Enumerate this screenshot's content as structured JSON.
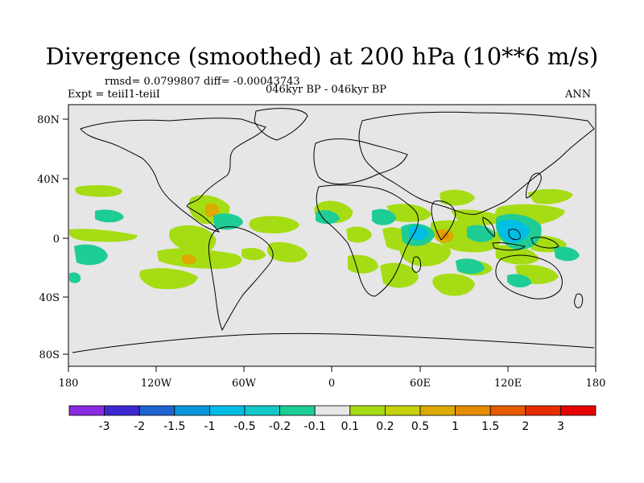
{
  "title": "Divergence (smoothed) at 200 hPa (10**6 m/s)",
  "stats": "rmsd= 0.0799807 diff= -0.00043743",
  "experiment": "Expt = teiiI1-teiiI",
  "period": "046kyr BP - 046kyr BP",
  "season": "ANN",
  "axes": {
    "lat_labels": [
      "80N",
      "40N",
      "0",
      "40S",
      "80S"
    ],
    "lon_labels": [
      "180",
      "120W",
      "60W",
      "0",
      "60E",
      "120E",
      "180"
    ]
  },
  "colorbar": {
    "labels": [
      "-3",
      "-2",
      "-1.5",
      "-1",
      "-0.5",
      "-0.2",
      "-0.1",
      "0.1",
      "0.2",
      "0.5",
      "1",
      "1.5",
      "2",
      "3"
    ],
    "colors": [
      "#8a2be2",
      "#3c28d2",
      "#1e64d2",
      "#0a96dc",
      "#00bee6",
      "#14c8c8",
      "#1ecc96",
      "#e6e6e6",
      "#a6dc14",
      "#c8d20a",
      "#dcaa00",
      "#e68c00",
      "#e65a00",
      "#e62d00",
      "#e60000"
    ]
  },
  "map": {
    "background": "#e6e6e6",
    "coastline_color": "#000000"
  }
}
